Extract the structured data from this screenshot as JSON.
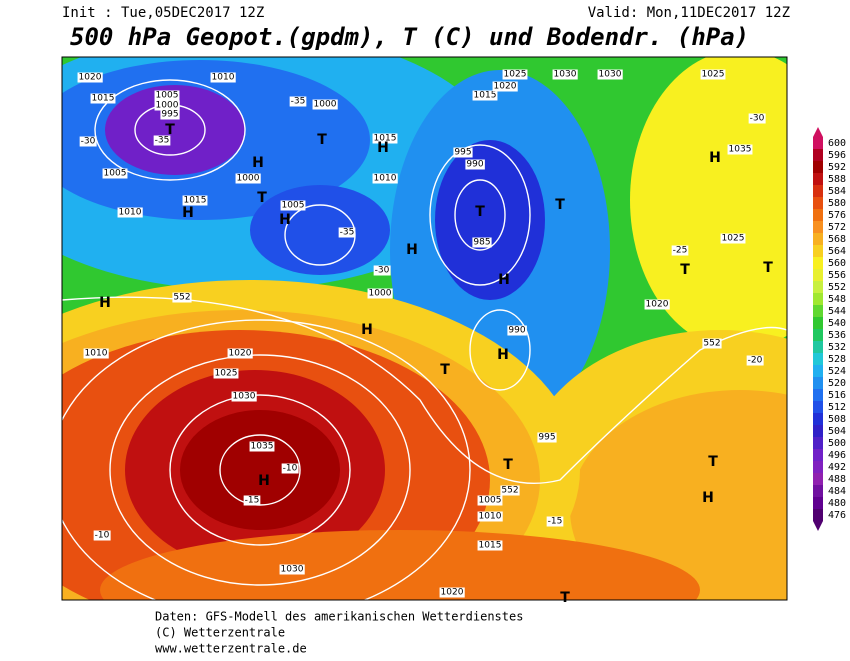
{
  "header": {
    "init": "Init : Tue,05DEC2017 12Z",
    "valid": "Valid: Mon,11DEC2017 12Z",
    "title": "500 hPa Geopot.(gpdm), T (C) und Bodendr. (hPa)"
  },
  "colorbar": {
    "ticks": [
      600,
      596,
      592,
      588,
      584,
      580,
      576,
      572,
      568,
      564,
      560,
      556,
      552,
      548,
      544,
      540,
      536,
      532,
      528,
      524,
      520,
      516,
      512,
      508,
      504,
      500,
      496,
      492,
      488,
      484,
      480,
      476
    ],
    "colors": [
      "#d01060",
      "#b00020",
      "#a00000",
      "#c01010",
      "#d83010",
      "#e85010",
      "#f07010",
      "#f89020",
      "#f8b020",
      "#f8d020",
      "#f8f020",
      "#e8f030",
      "#c8f040",
      "#a0e830",
      "#60d830",
      "#30c830",
      "#20c860",
      "#20c8a0",
      "#20c8d8",
      "#20b0f0",
      "#2090f0",
      "#2070f0",
      "#2050e8",
      "#2030d8",
      "#3020c8",
      "#5020c8",
      "#7020c8",
      "#8020c0",
      "#9020b0",
      "#7010a0",
      "#600090",
      "#500070"
    ]
  },
  "map_labels": [
    "1020",
    "1010",
    "1015",
    "1005",
    "1000",
    "995",
    "-35",
    "-30",
    "1005",
    "1000",
    "1015",
    "1010",
    "1000",
    "1025",
    "1030",
    "1030",
    "1025",
    "1015",
    "1020",
    "-35",
    "-30",
    "995",
    "990",
    "985",
    "-35",
    "-30",
    "1005",
    "1000",
    "1015",
    "1010",
    "1010",
    "1020",
    "1025",
    "1030",
    "1035",
    "-10",
    "-15",
    "1030",
    "1020",
    "1015",
    "1010",
    "1005",
    "995",
    "990",
    "1035",
    "1025",
    "1020",
    "-25",
    "-20",
    "-15",
    "-10",
    "552",
    "552",
    "552"
  ],
  "markers": [
    "H",
    "T",
    "H",
    "T",
    "H",
    "T",
    "H",
    "T",
    "H",
    "H",
    "T",
    "H",
    "T",
    "H",
    "H",
    "T",
    "H",
    "T",
    "H",
    "T",
    "H",
    "T",
    "T"
  ],
  "footer": {
    "line1": "Daten: GFS-Modell des amerikanischen Wetterdienstes",
    "line2": "(C) Wetterzentrale",
    "line3": "www.wetterzentrale.de"
  }
}
